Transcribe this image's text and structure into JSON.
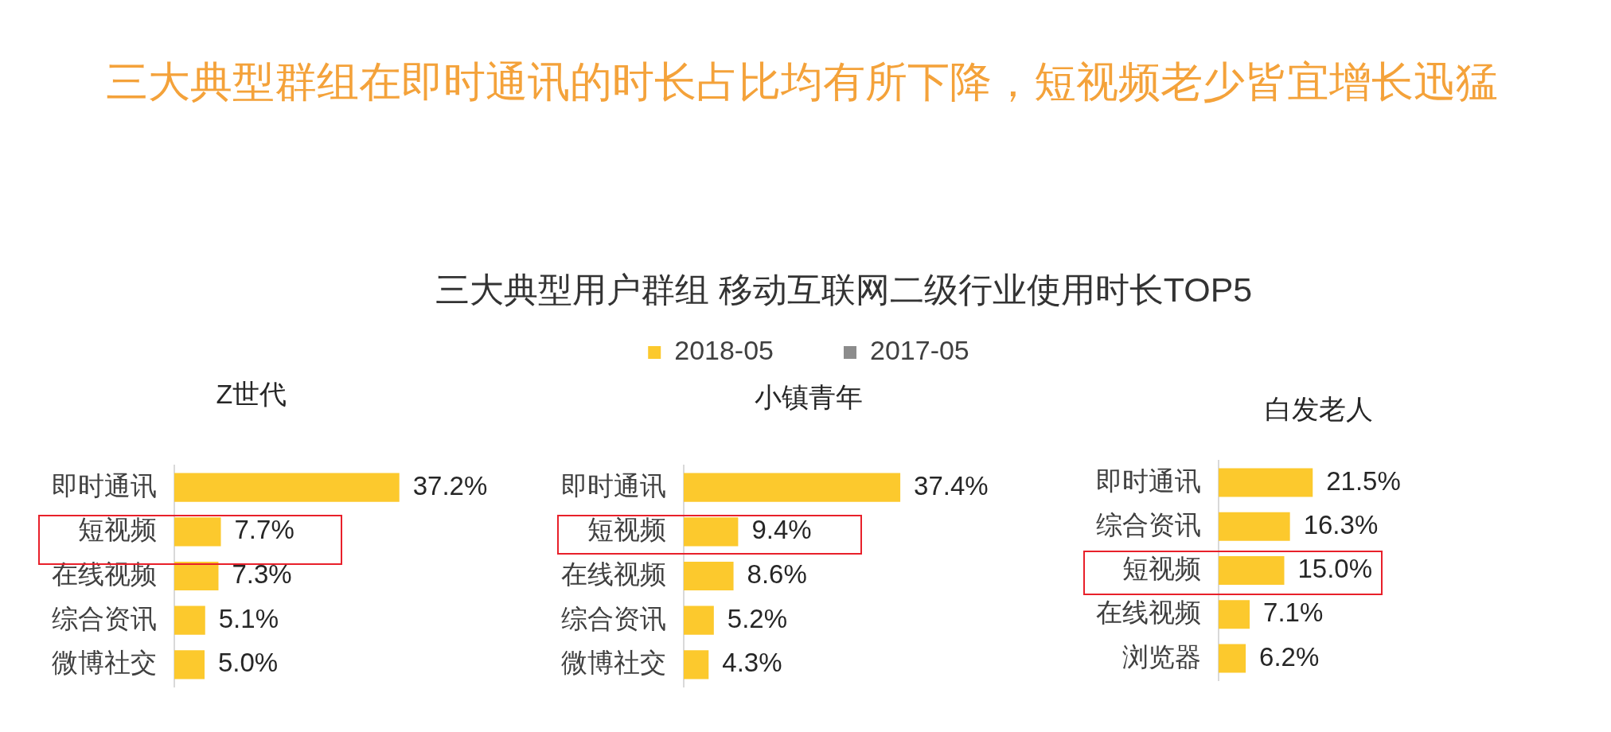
{
  "chart_data": [
    {
      "type": "other",
      "title": "三大典型群组在即时通讯的时长占比均有所下降，短视频老少皆宜增长迅猛",
      "subtitle": "三大典型用户群组 移动互联网二级行业使用时长TOP5"
    },
    {
      "type": "bar",
      "orientation": "horizontal",
      "title": "Z世代",
      "categories": [
        "即时通讯",
        "短视频",
        "在线视频",
        "综合资讯",
        "微博社交"
      ],
      "values": [
        37.2,
        7.7,
        7.3,
        5.1,
        5.0
      ],
      "value_labels": [
        "37.2%",
        "7.7%",
        "7.3%",
        "5.1%",
        "5.0%"
      ],
      "color": "#fcc92d",
      "tick_labels": "y"
    },
    {
      "type": "bar",
      "orientation": "horizontal",
      "title": "小镇青年",
      "categories": [
        "即时通讯",
        "短视频",
        "在线视频",
        "综合资讯",
        "微博社交"
      ],
      "series": [
        {
          "name": "2018-05",
          "color": "#fcc92d",
          "values": [
            37.4,
            9.4,
            8.6,
            5.2,
            4.3
          ],
          "value_labels": [
            "37.4%",
            "9.4%",
            "8.6%",
            "5.2%",
            "4.3%"
          ]
        },
        {
          "name": "2017-05",
          "color": "#8c8c8c",
          "values": [
            null,
            null,
            null,
            null,
            null
          ]
        }
      ],
      "tick_labels": "y",
      "legend": "top"
    },
    {
      "type": "bar",
      "orientation": "horizontal",
      "title": "白发老人",
      "categories": [
        "即时通讯",
        "综合资讯",
        "短视频",
        "在线视频",
        "浏览器"
      ],
      "values": [
        21.5,
        16.3,
        15.0,
        7.1,
        6.2
      ],
      "value_labels": [
        "21.5%",
        "16.3%",
        "15.0%",
        "7.1%",
        "6.2%"
      ],
      "color": "#fcc92d",
      "tick_labels": "y"
    }
  ]
}
